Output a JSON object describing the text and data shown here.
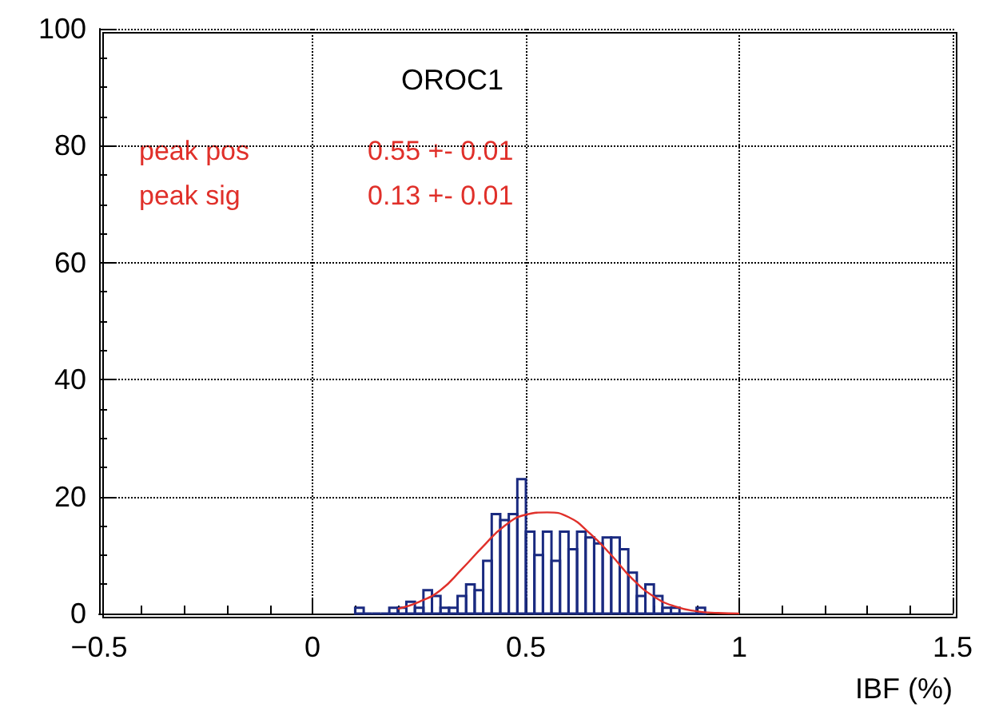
{
  "chart_data": {
    "type": "histogram",
    "title": "OROC1",
    "xlabel": "IBF (%)",
    "annotations": [
      "peak pos",
      "0.55 +- 0.01",
      "peak sig",
      "0.13 +- 0.01"
    ],
    "xlim": [
      -0.5,
      1.5
    ],
    "xticks": [
      {
        "value": -0.5,
        "label": "−0.5"
      },
      0,
      0.5,
      1,
      1.5
    ],
    "ylim": [
      0,
      100
    ],
    "yticks": [
      0,
      20,
      40,
      60,
      80,
      100
    ],
    "grid": true,
    "series": [
      {
        "color": "#1a2a80",
        "bins": [
          0.1,
          0.12,
          0.14,
          0.16,
          0.18,
          0.2,
          0.22,
          0.24,
          0.26,
          0.28,
          0.3,
          0.32,
          0.34,
          0.36,
          0.38,
          0.4,
          0.42,
          0.44,
          0.46,
          0.48,
          0.5,
          0.52,
          0.54,
          0.56,
          0.58,
          0.6,
          0.62,
          0.64,
          0.66,
          0.68,
          0.7,
          0.72,
          0.74,
          0.76,
          0.78,
          0.8,
          0.82,
          0.84,
          0.86,
          0.88,
          0.9,
          0.92
        ],
        "values": [
          1,
          0,
          0,
          0,
          1,
          1,
          2,
          1,
          4,
          3,
          1,
          1,
          3,
          5,
          4,
          9,
          17,
          16,
          17,
          23,
          14,
          10,
          14,
          9,
          14,
          11,
          14,
          13,
          12,
          13,
          13,
          11,
          7,
          3,
          5,
          3,
          1,
          1,
          0,
          0,
          1
        ]
      },
      {
        "type": "line",
        "color": "#e0302a",
        "x": [
          0.2,
          0.25,
          0.3,
          0.35,
          0.4,
          0.45,
          0.5,
          0.55,
          0.6,
          0.65,
          0.7,
          0.75,
          0.8,
          0.85,
          0.9,
          0.95,
          1.0
        ],
        "values": [
          0.8,
          2,
          4,
          7.6,
          11.5,
          15,
          16.9,
          17.3,
          16.5,
          13.7,
          10,
          5.9,
          2.9,
          1.2,
          0.4,
          0.1,
          0
        ]
      }
    ]
  }
}
